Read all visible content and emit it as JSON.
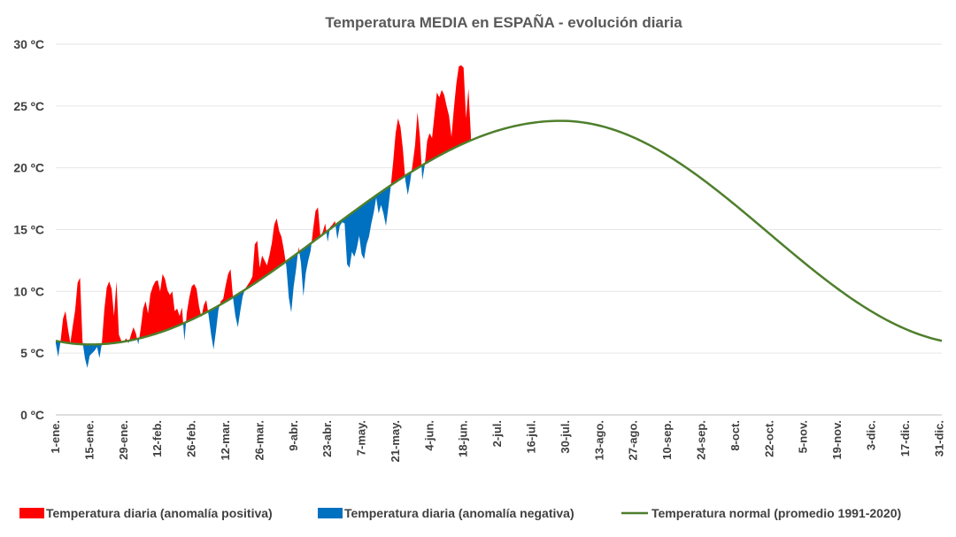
{
  "chart_data": {
    "type": "area",
    "title": "Temperatura MEDIA en ESPAÑA - evolución diaria",
    "xlabel": "",
    "ylabel": "",
    "ylim": [
      0,
      30
    ],
    "xlim": [
      1,
      366
    ],
    "y_ticks": [
      0,
      5,
      10,
      15,
      20,
      25,
      30
    ],
    "y_tick_labels": [
      "0 ºC",
      "5 ºC",
      "10 ºC",
      "15 ºC",
      "20 ºC",
      "25 ºC",
      "30 ºC"
    ],
    "x_ticks": [
      1,
      15,
      29,
      43,
      57,
      71,
      85,
      99,
      113,
      127,
      141,
      155,
      169,
      183,
      197,
      211,
      225,
      239,
      253,
      267,
      281,
      295,
      309,
      323,
      337,
      351,
      365
    ],
    "x_tick_labels": [
      "1-ene.",
      "15-ene.",
      "29-ene.",
      "12-feb.",
      "26-feb.",
      "12-mar.",
      "26-mar.",
      "9-abr.",
      "23-abr.",
      "7-may.",
      "21-may.",
      "4-jun.",
      "18-jun.",
      "2-jul.",
      "16-jul.",
      "30-jul.",
      "13-ago.",
      "27-ago.",
      "10-sep.",
      "24-sep.",
      "8-oct.",
      "22-oct.",
      "5-nov.",
      "19-nov.",
      "3-dic.",
      "17-dic.",
      "31-dic."
    ],
    "normal": {
      "name": "Temperatura normal (promedio 1991-2020)",
      "color": "#4e7f2c",
      "min": 5.7,
      "max": 23.8,
      "min_day": 15,
      "max_day": 209,
      "points": [
        [
          1,
          5.8
        ],
        [
          8,
          5.7
        ],
        [
          15,
          5.7
        ],
        [
          30,
          6.2
        ],
        [
          45,
          7.4
        ],
        [
          60,
          8.9
        ],
        [
          75,
          10.6
        ],
        [
          90,
          12.1
        ],
        [
          105,
          13.8
        ],
        [
          120,
          15.8
        ],
        [
          135,
          17.9
        ],
        [
          150,
          19.9
        ],
        [
          165,
          21.6
        ],
        [
          180,
          22.8
        ],
        [
          195,
          23.6
        ],
        [
          209,
          23.8
        ],
        [
          225,
          23.3
        ],
        [
          240,
          22.2
        ],
        [
          255,
          20.6
        ],
        [
          270,
          18.5
        ],
        [
          285,
          16.0
        ],
        [
          300,
          13.4
        ],
        [
          315,
          10.9
        ],
        [
          330,
          8.8
        ],
        [
          345,
          7.1
        ],
        [
          360,
          6.1
        ],
        [
          366,
          5.8
        ]
      ]
    },
    "series": [
      {
        "name": "Temperatura diaria",
        "positive_label": "Temperatura diaria (anomalía positiva)",
        "negative_label": "Temperatura diaria (anomalía negativa)",
        "positive_color": "#ff0000",
        "negative_color": "#0070c0",
        "points": [
          [
            1,
            5.8
          ],
          [
            2,
            4.7
          ],
          [
            3,
            6.0
          ],
          [
            4,
            7.8
          ],
          [
            5,
            8.4
          ],
          [
            6,
            7.0
          ],
          [
            7,
            5.8
          ],
          [
            8,
            7.2
          ],
          [
            9,
            8.5
          ],
          [
            10,
            10.7
          ],
          [
            11,
            11.1
          ],
          [
            12,
            6.0
          ],
          [
            13,
            4.6
          ],
          [
            14,
            3.8
          ],
          [
            15,
            4.8
          ],
          [
            16,
            5.0
          ],
          [
            17,
            5.2
          ],
          [
            18,
            5.5
          ],
          [
            19,
            4.6
          ],
          [
            20,
            5.8
          ],
          [
            21,
            8.5
          ],
          [
            22,
            10.3
          ],
          [
            23,
            10.8
          ],
          [
            24,
            10.2
          ],
          [
            25,
            8.0
          ],
          [
            26,
            10.8
          ],
          [
            27,
            6.5
          ],
          [
            28,
            6.0
          ],
          [
            29,
            5.9
          ],
          [
            30,
            6.2
          ],
          [
            31,
            5.8
          ],
          [
            32,
            6.5
          ],
          [
            33,
            7.1
          ],
          [
            34,
            6.6
          ],
          [
            35,
            5.7
          ],
          [
            36,
            7.0
          ],
          [
            37,
            8.6
          ],
          [
            38,
            9.2
          ],
          [
            39,
            8.2
          ],
          [
            40,
            9.8
          ],
          [
            41,
            10.4
          ],
          [
            42,
            10.8
          ],
          [
            43,
            10.9
          ],
          [
            44,
            10.0
          ],
          [
            45,
            11.4
          ],
          [
            46,
            11.0
          ],
          [
            47,
            10.1
          ],
          [
            48,
            9.7
          ],
          [
            49,
            10.0
          ],
          [
            50,
            8.4
          ],
          [
            51,
            8.6
          ],
          [
            52,
            8.0
          ],
          [
            53,
            8.7
          ],
          [
            54,
            6.0
          ],
          [
            55,
            8.3
          ],
          [
            56,
            9.5
          ],
          [
            57,
            10.4
          ],
          [
            58,
            10.6
          ],
          [
            59,
            10.2
          ],
          [
            60,
            8.8
          ],
          [
            61,
            7.9
          ],
          [
            62,
            8.9
          ],
          [
            63,
            9.3
          ],
          [
            64,
            8.0
          ],
          [
            65,
            6.5
          ],
          [
            66,
            5.3
          ],
          [
            67,
            6.8
          ],
          [
            68,
            8.5
          ],
          [
            69,
            9.2
          ],
          [
            70,
            9.4
          ],
          [
            71,
            10.5
          ],
          [
            72,
            11.4
          ],
          [
            73,
            11.8
          ],
          [
            74,
            9.5
          ],
          [
            75,
            8.0
          ],
          [
            76,
            7.1
          ],
          [
            77,
            8.4
          ],
          [
            78,
            9.6
          ],
          [
            79,
            10.2
          ],
          [
            80,
            10.5
          ],
          [
            81,
            10.8
          ],
          [
            82,
            11.2
          ],
          [
            83,
            13.8
          ],
          [
            84,
            14.1
          ],
          [
            85,
            11.9
          ],
          [
            86,
            12.9
          ],
          [
            87,
            12.5
          ],
          [
            88,
            12.1
          ],
          [
            89,
            12.9
          ],
          [
            90,
            13.9
          ],
          [
            91,
            15.4
          ],
          [
            92,
            15.9
          ],
          [
            93,
            14.9
          ],
          [
            94,
            14.4
          ],
          [
            95,
            13.3
          ],
          [
            96,
            12.0
          ],
          [
            97,
            9.5
          ],
          [
            98,
            8.3
          ],
          [
            99,
            10.4
          ],
          [
            100,
            11.8
          ],
          [
            101,
            13.6
          ],
          [
            102,
            12.3
          ],
          [
            103,
            9.6
          ],
          [
            104,
            11.5
          ],
          [
            105,
            12.5
          ],
          [
            106,
            13.3
          ],
          [
            107,
            15.0
          ],
          [
            108,
            16.5
          ],
          [
            109,
            16.8
          ],
          [
            110,
            14.5
          ],
          [
            111,
            14.8
          ],
          [
            112,
            15.5
          ],
          [
            113,
            14.0
          ],
          [
            114,
            15.2
          ],
          [
            115,
            15.4
          ],
          [
            116,
            15.7
          ],
          [
            117,
            14.2
          ],
          [
            118,
            15.3
          ],
          [
            119,
            15.6
          ],
          [
            120,
            15.5
          ],
          [
            121,
            12.2
          ],
          [
            122,
            11.9
          ],
          [
            123,
            13.2
          ],
          [
            124,
            12.8
          ],
          [
            125,
            13.5
          ],
          [
            126,
            14.5
          ],
          [
            127,
            13.0
          ],
          [
            128,
            12.6
          ],
          [
            129,
            13.8
          ],
          [
            130,
            14.4
          ],
          [
            131,
            15.5
          ],
          [
            132,
            16.4
          ],
          [
            133,
            17.6
          ],
          [
            134,
            16.3
          ],
          [
            135,
            17.0
          ],
          [
            136,
            16.3
          ],
          [
            137,
            15.3
          ],
          [
            138,
            16.8
          ],
          [
            139,
            18.5
          ],
          [
            140,
            20.5
          ],
          [
            141,
            22.8
          ],
          [
            142,
            24.0
          ],
          [
            143,
            23.3
          ],
          [
            144,
            21.5
          ],
          [
            145,
            19.0
          ],
          [
            146,
            17.8
          ],
          [
            147,
            18.9
          ],
          [
            148,
            20.3
          ],
          [
            149,
            21.8
          ],
          [
            150,
            24.5
          ],
          [
            151,
            22.5
          ],
          [
            152,
            19.0
          ],
          [
            153,
            20.2
          ],
          [
            154,
            22.2
          ],
          [
            155,
            22.8
          ],
          [
            156,
            22.4
          ],
          [
            157,
            24.3
          ],
          [
            158,
            26.1
          ],
          [
            159,
            25.7
          ],
          [
            160,
            26.3
          ],
          [
            161,
            25.9
          ],
          [
            162,
            25.0
          ],
          [
            163,
            24.2
          ],
          [
            164,
            22.5
          ],
          [
            165,
            24.8
          ],
          [
            166,
            26.8
          ],
          [
            167,
            28.2
          ],
          [
            168,
            28.3
          ],
          [
            169,
            28.1
          ],
          [
            170,
            24.0
          ],
          [
            171,
            26.4
          ],
          [
            172,
            22.6
          ]
        ]
      }
    ],
    "legend_position": "bottom",
    "grid": true
  }
}
